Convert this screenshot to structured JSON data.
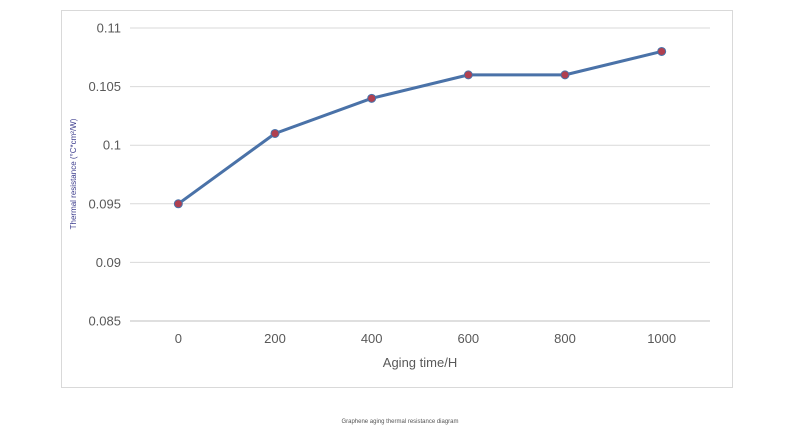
{
  "chart_data": {
    "type": "line",
    "x": [
      0,
      200,
      400,
      600,
      800,
      1000
    ],
    "categories": [
      "0",
      "200",
      "400",
      "600",
      "800",
      "1000"
    ],
    "series": [
      {
        "values": [
          0.095,
          0.101,
          0.104,
          0.106,
          0.106,
          0.108
        ]
      }
    ],
    "xlabel": "Aging time/H",
    "ylabel": "Thermal resistance (°C*cm²/W)",
    "ylim": [
      0.085,
      0.11
    ],
    "yticks": [
      "0.085",
      "0.09",
      "0.095",
      "0.1",
      "0.105",
      "0.11"
    ],
    "grid": true,
    "line_color": "#4a72a8",
    "marker_color": "#b04050"
  },
  "caption": "Graphene aging thermal resistance diagram"
}
